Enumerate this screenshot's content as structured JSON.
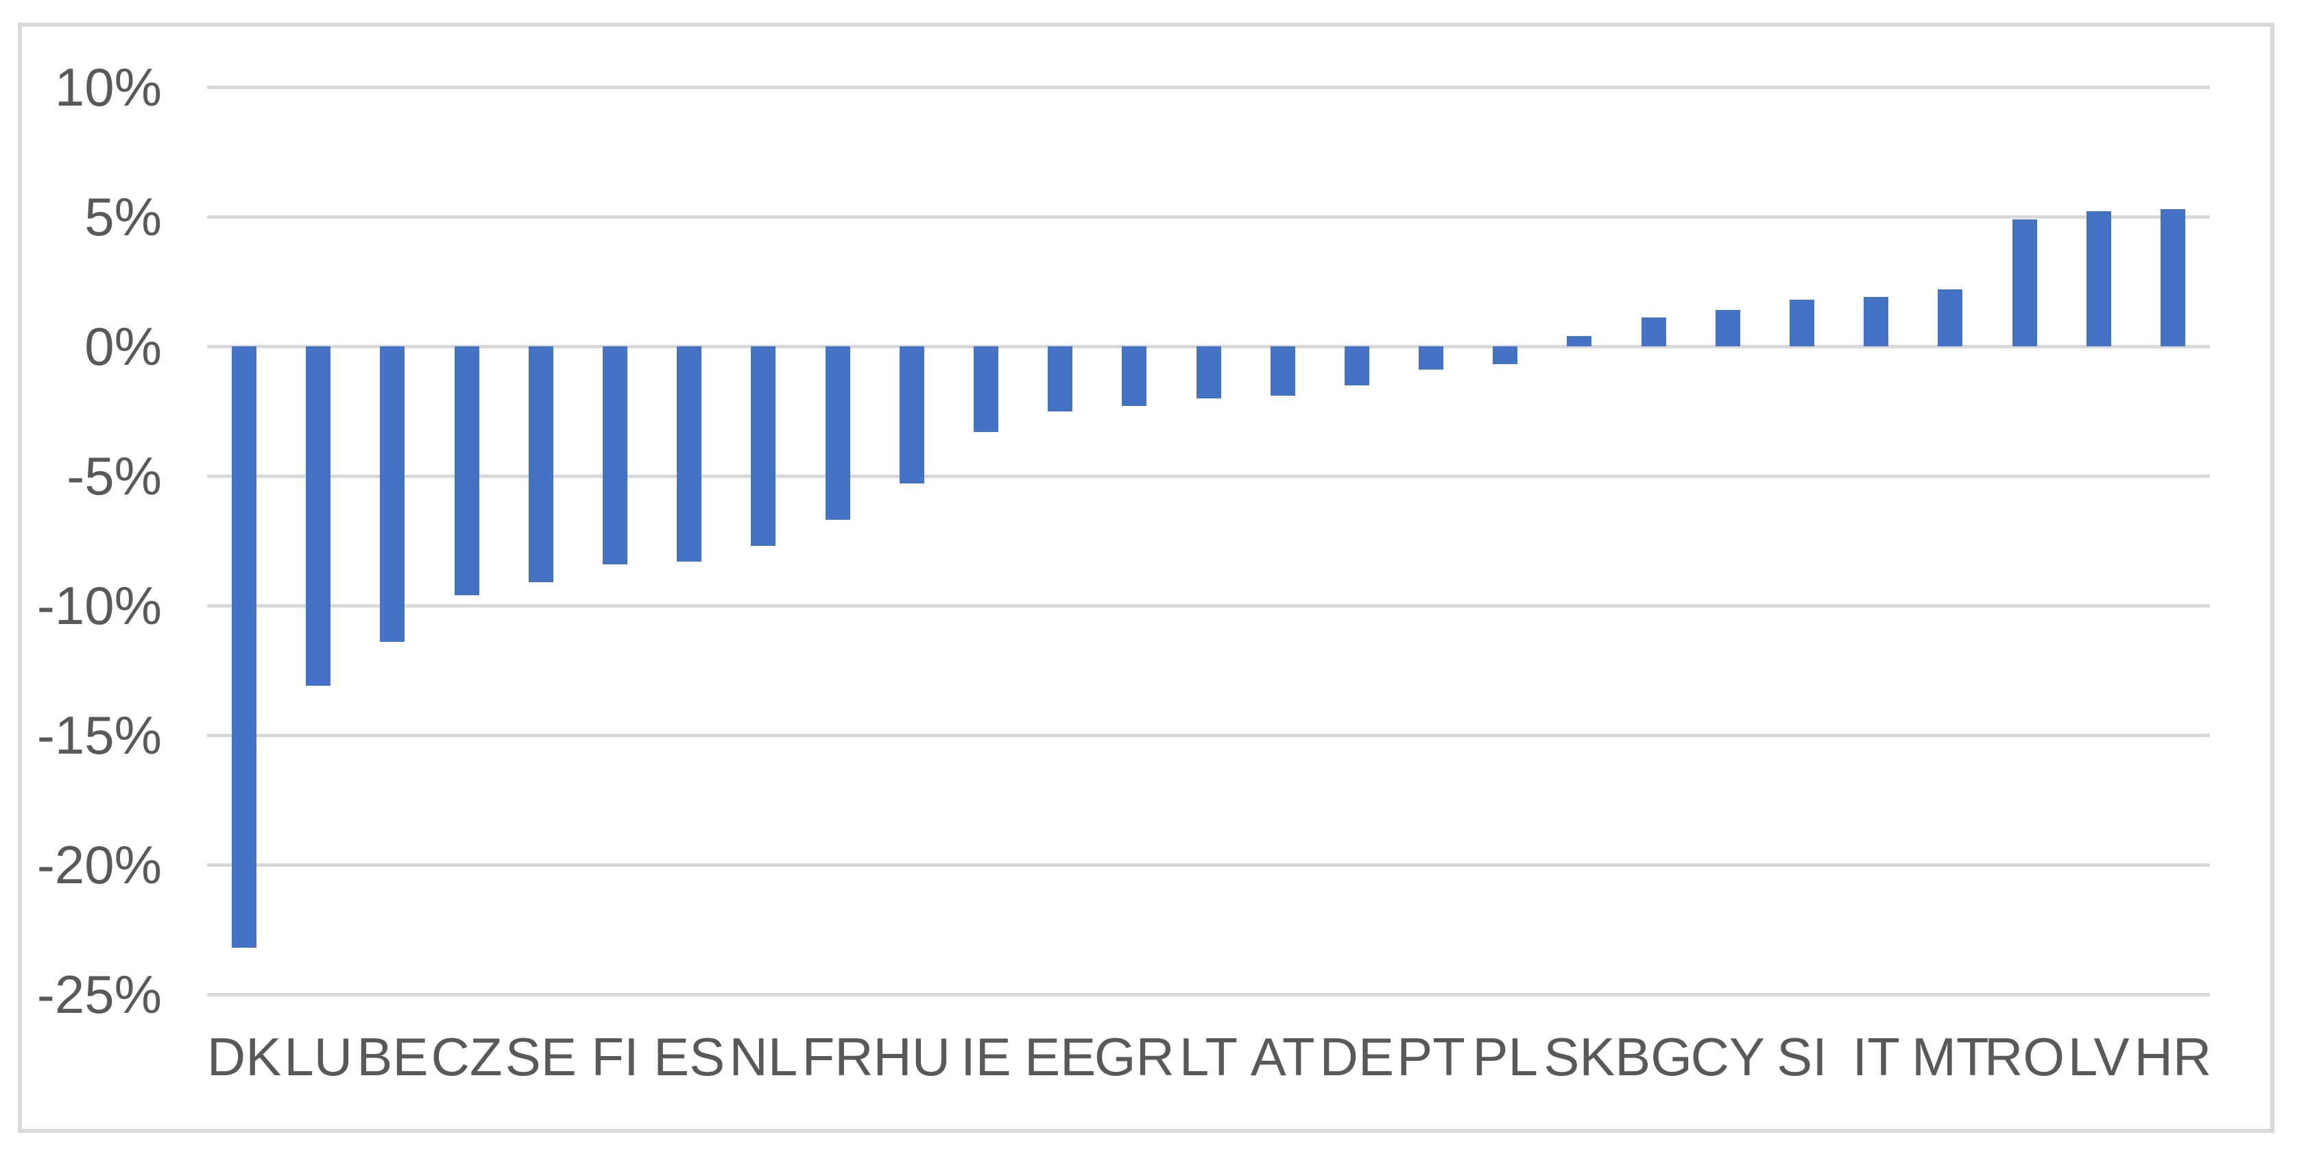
{
  "chart_data": {
    "type": "bar",
    "title": "",
    "xlabel": "",
    "ylabel": "",
    "categories": [
      "DK",
      "LU",
      "BE",
      "CZ",
      "SE",
      "FI",
      "ES",
      "NL",
      "FR",
      "HU",
      "IE",
      "EE",
      "GR",
      "LT",
      "AT",
      "DE",
      "PT",
      "PL",
      "SK",
      "BG",
      "CY",
      "SI",
      "IT",
      "MT",
      "RO",
      "LV",
      "HR"
    ],
    "values": [
      -23.2,
      -13.1,
      -11.4,
      -9.6,
      -9.1,
      -8.4,
      -8.3,
      -7.7,
      -6.7,
      -5.3,
      -3.3,
      -2.5,
      -2.3,
      -2.0,
      -1.9,
      -1.5,
      -0.9,
      -0.7,
      0.4,
      1.1,
      1.4,
      1.8,
      1.9,
      2.2,
      4.9,
      5.2,
      5.3
    ],
    "value_unit": "%",
    "ylim": [
      -25,
      10
    ],
    "ytick_values": [
      10,
      5,
      0,
      -5,
      -10,
      -15,
      -20,
      -25
    ],
    "ytick_labels": [
      "10%",
      "5%",
      "0%",
      "-5%",
      "-10%",
      "-15%",
      "-20%",
      "-25%"
    ],
    "grid": true,
    "legend": false
  },
  "style": {
    "bar_color": "#4472C4",
    "gridline_color": "#D9D9D9",
    "frame_border_color": "#D9D9D9",
    "tick_label_color": "#595959",
    "background_color": "#FFFFFF"
  }
}
